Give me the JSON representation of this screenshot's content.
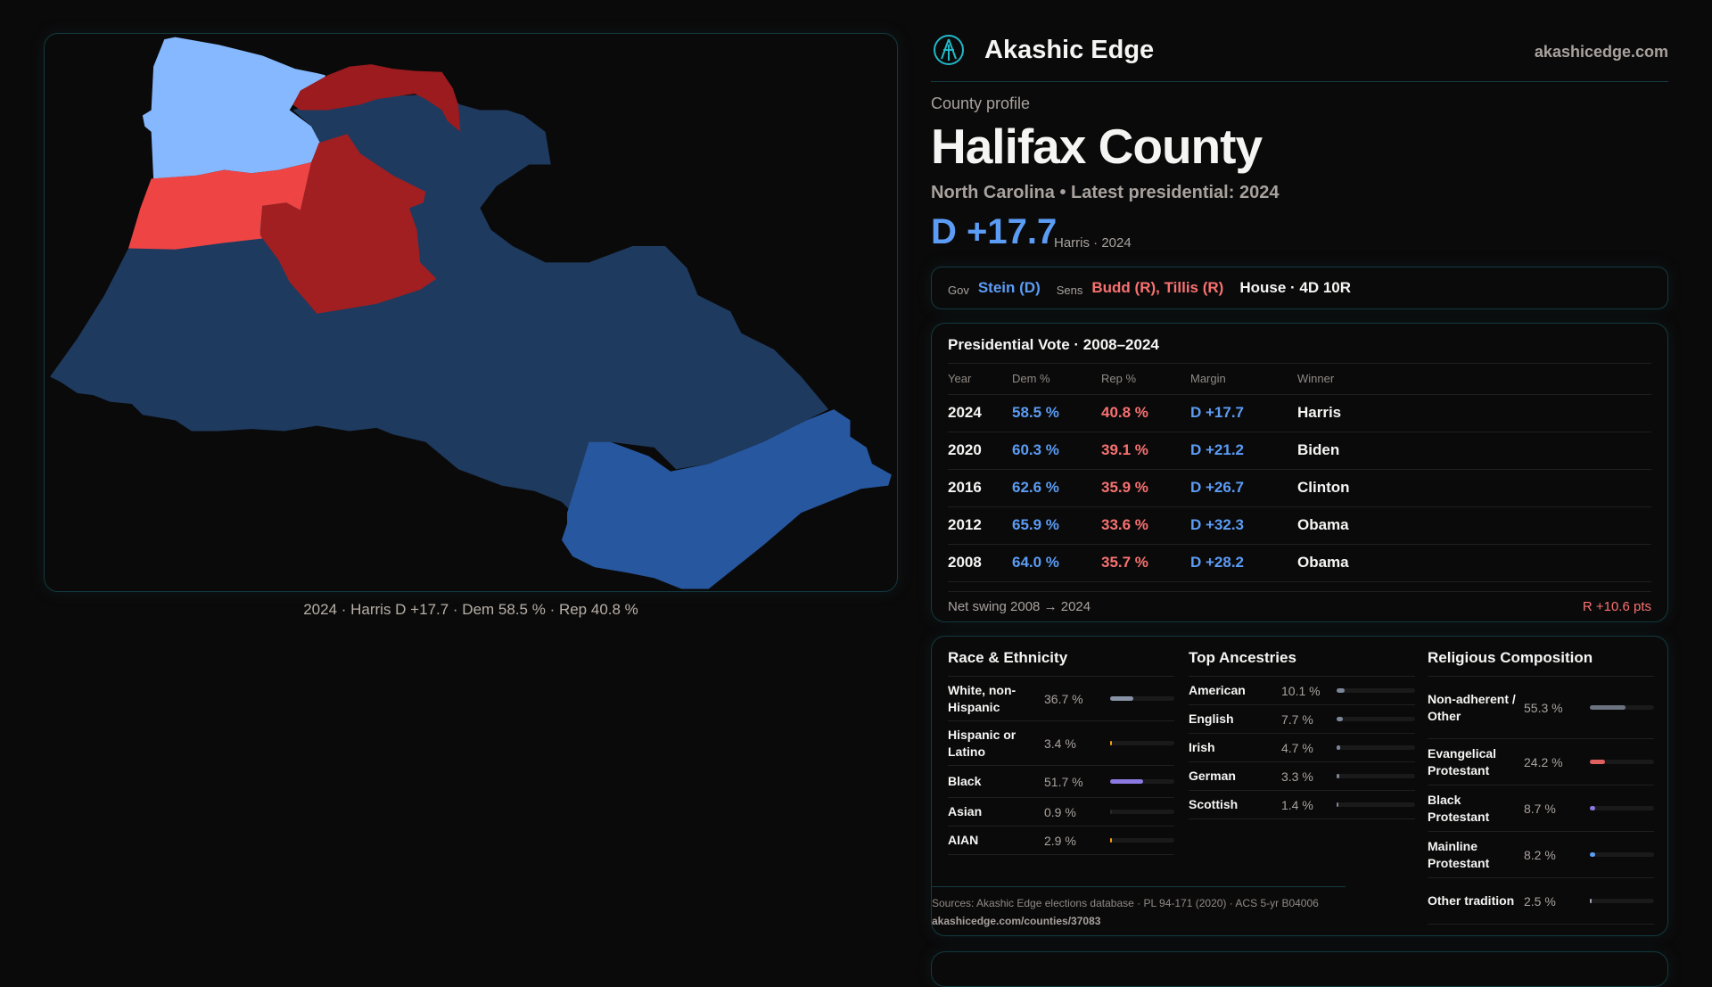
{
  "brand": {
    "name": "Akashic Edge",
    "site": "akashicedge.com",
    "logo_icon": "akashic-logo-icon"
  },
  "profile": {
    "kicker": "County profile",
    "title": "Halifax County",
    "subtitle": "North Carolina • Latest presidential: 2024",
    "margin": "D +17.7",
    "margin_sub": "Harris · 2024"
  },
  "officials": {
    "gov_label": "Gov",
    "gov": "Stein (D)",
    "sens_label": "Sens",
    "sens": "Budd (R), Tillis (R)",
    "house": "House · 4D 10R"
  },
  "map": {
    "caption": "2024 · Harris D +17.7 · Dem 58.5 % · Rep 40.8 %",
    "colors": {
      "strong_d": "#1e3a5f",
      "lean_d": "#27579e",
      "light_d": "#85b8ff",
      "lean_r": "#ef4444",
      "strong_r": "#a11f20"
    }
  },
  "presidential": {
    "title": "Presidential Vote · 2008–2024",
    "headers": [
      "Year",
      "Dem %",
      "Rep %",
      "Margin",
      "Winner"
    ],
    "rows": [
      [
        "2024",
        "58.5 %",
        "40.8 %",
        "D +17.7",
        "Harris"
      ],
      [
        "2020",
        "60.3 %",
        "39.1 %",
        "D +21.2",
        "Biden"
      ],
      [
        "2016",
        "62.6 %",
        "35.9 %",
        "D +26.7",
        "Clinton"
      ],
      [
        "2012",
        "65.9 %",
        "33.6 %",
        "D +32.3",
        "Obama"
      ],
      [
        "2008",
        "64.0 %",
        "35.7 %",
        "D +28.2",
        "Obama"
      ]
    ],
    "swing_label": "Net swing 2008 → 2024",
    "swing_value": "R +10.6 pts"
  },
  "race": {
    "title": "Race & Ethnicity",
    "items": [
      {
        "name": "White, non-Hispanic",
        "label": "36.7 %",
        "value": 36.7,
        "color": "#8893a6"
      },
      {
        "name": "Hispanic or Latino",
        "label": "3.4 %",
        "value": 3.4,
        "color": "#f59e0b"
      },
      {
        "name": "Black",
        "label": "51.7 %",
        "value": 51.7,
        "color": "#8b78e0"
      },
      {
        "name": "Asian",
        "label": "0.9 %",
        "value": 0.9,
        "color": "#2a2a2a"
      },
      {
        "name": "AIAN",
        "label": "2.9 %",
        "value": 2.9,
        "color": "#f59e0b"
      }
    ]
  },
  "ancestry": {
    "title": "Top Ancestries",
    "items": [
      {
        "name": "American",
        "label": "10.1 %",
        "value": 10.1,
        "color": "#7c8699"
      },
      {
        "name": "English",
        "label": "7.7 %",
        "value": 7.7,
        "color": "#7c8699"
      },
      {
        "name": "Irish",
        "label": "4.7 %",
        "value": 4.7,
        "color": "#7c8699"
      },
      {
        "name": "German",
        "label": "3.3 %",
        "value": 3.3,
        "color": "#7c8699"
      },
      {
        "name": "Scottish",
        "label": "1.4 %",
        "value": 1.4,
        "color": "#7c8699"
      }
    ]
  },
  "religion": {
    "title": "Religious Composition",
    "items": [
      {
        "name": "Non-adherent / Other",
        "label": "55.3 %",
        "value": 55.3,
        "color": "#6b7280"
      },
      {
        "name": "Evangelical Protestant",
        "label": "24.2 %",
        "value": 24.2,
        "color": "#e06060"
      },
      {
        "name": "Black Protestant",
        "label": "8.7 %",
        "value": 8.7,
        "color": "#8b78e0"
      },
      {
        "name": "Mainline Protestant",
        "label": "8.2 %",
        "value": 8.2,
        "color": "#5b9cf5"
      },
      {
        "name": "Other tradition",
        "label": "2.5 %",
        "value": 2.5,
        "color": "#9ca3af"
      }
    ]
  },
  "sources": {
    "text": "Sources: Akashic Edge elections database · PL 94-171 (2020) · ACS 5-yr B04006",
    "url": "akashicedge.com/counties/37083"
  }
}
